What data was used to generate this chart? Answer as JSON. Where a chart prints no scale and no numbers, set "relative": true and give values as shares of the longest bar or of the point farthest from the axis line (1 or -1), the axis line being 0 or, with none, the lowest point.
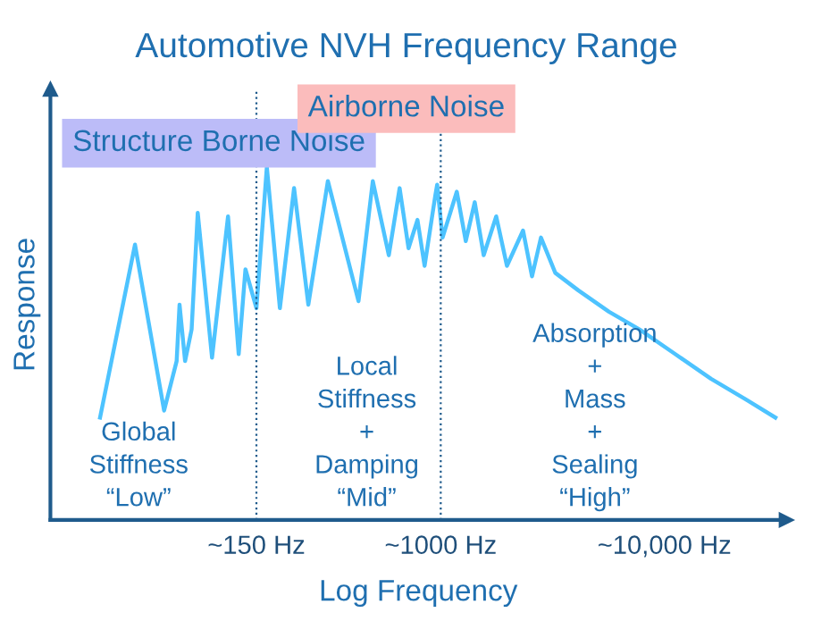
{
  "chart_data": {
    "type": "line",
    "title": "Automotive NVH Frequency Range",
    "xlabel": "Log Frequency",
    "ylabel": "Response",
    "relative": true,
    "log": "x",
    "xlim": [
      18,
      35000
    ],
    "xticks": [
      {
        "value": 150,
        "label": "~150 Hz"
      },
      {
        "value": 1000,
        "label": "~1000 Hz"
      },
      {
        "value": 10000,
        "label": "~10,000 Hz"
      }
    ],
    "series": [
      {
        "color": "#4dc3ff",
        "x": [
          30,
          43,
          58,
          66,
          68,
          72,
          77,
          82,
          95,
          112,
          125,
          134,
          150,
          167,
          191,
          221,
          256,
          313,
          429,
          497,
          586,
          655,
          718,
          787,
          847,
          946,
          964,
          1019,
          1180,
          1294,
          1419,
          1556,
          1770,
          1977,
          2333,
          2559,
          2805,
          3251,
          4130,
          5649,
          7727,
          11170,
          16140,
          23330,
          31330
        ],
        "values": [
          0.29,
          0.78,
          0.31,
          0.45,
          0.61,
          0.45,
          0.54,
          0.87,
          0.46,
          0.86,
          0.47,
          0.71,
          0.6,
          1.0,
          0.6,
          0.94,
          0.61,
          0.96,
          0.62,
          0.96,
          0.75,
          0.94,
          0.77,
          0.85,
          0.72,
          0.92,
          0.95,
          0.8,
          0.93,
          0.79,
          0.9,
          0.75,
          0.86,
          0.72,
          0.82,
          0.69,
          0.8,
          0.7,
          0.65,
          0.59,
          0.54,
          0.47,
          0.4,
          0.34,
          0.29
        ]
      }
    ],
    "ref_lines": [
      {
        "axis": "x",
        "value": 150,
        "color": "#1f5b8c",
        "line_style": "dotted"
      },
      {
        "axis": "x",
        "value": 1000,
        "color": "#1f5b8c",
        "line_style": "dotted"
      }
    ],
    "annotations": [
      "Airborne Noise",
      "Structure Borne Noise",
      "Global\nStiffness\n“Low”",
      "Local\nStiffness\n+\nDamping\n“Mid”",
      "Absorption\n+\nMass\n+\nSealing\n“High”"
    ],
    "grid": false,
    "legend": false
  }
}
